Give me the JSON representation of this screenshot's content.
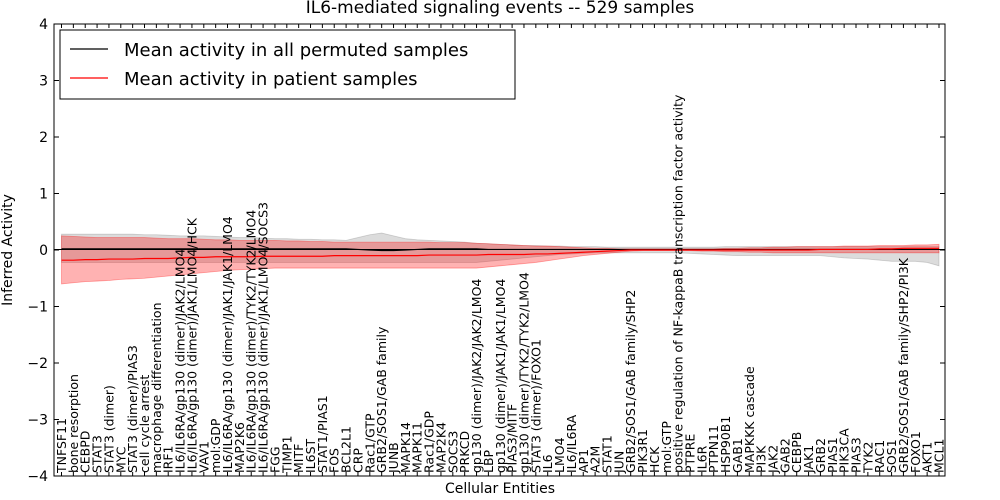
{
  "chart_data": {
    "type": "line",
    "title": "IL6-mediated signaling events -- 529 samples",
    "xlabel": "Cellular Entities",
    "ylabel": "Inferred Activity",
    "ylim": [
      -4,
      4
    ],
    "yticks": [
      -4,
      -3,
      -2,
      -1,
      0,
      1,
      2,
      3,
      4
    ],
    "grid": false,
    "legend_position": "top-left",
    "colors": {
      "permuted": "#000000",
      "patient": "#ff0000",
      "patient_band": "#ff0000",
      "permuted_band": "#808080"
    },
    "categories": [
      "TNFSF11",
      "bone resorption",
      "CEBPD",
      "STAT3",
      "STAT3 (dimer)",
      "MYC",
      "STAT3 (dimer)/PIAS3",
      "cell cycle arrest",
      "macrophage differentiation",
      "IRF1",
      "IL6/IL6RA/gp130 (dimer)/JAK2/LMO4",
      "IL6/IL6RA/gp130 (dimer)/JAK1/LMO4/HCK",
      "VAV1",
      "mol:GDP",
      "IL6/IL6RA/gp130 (dimer)/JAK1/JAK1/LMO4",
      "MAP2K6",
      "IL6/IL6RA/gp130 (dimer)/TYK2/TYK2/LMO4",
      "IL6/IL6RA/gp130 (dimer)/JAK1/LMO4/SOCS3",
      "FGG",
      "TIMP1",
      "MITF",
      "IL6ST",
      "STAT1/PIAS1",
      "FOS",
      "BCL2L1",
      "CRP",
      "Rac1/GTP",
      "GRB2/SOS1/GAB family",
      "JUNB",
      "MAPK14",
      "MAPK11",
      "Rac1/GDP",
      "MAP2K4",
      "SOCS3",
      "PRKCD",
      "gp130 (dimer)/JAK2/JAK2/LMO4",
      "LBP",
      "gp130 (dimer)/JAK1/JAK1/LMO4",
      "PIAS3/MITF",
      "gp130 (dimer)/TYK2/TYK2/LMO4",
      "STAT3 (dimer)/FOXO1",
      "IL6",
      "LMO4",
      "IL6/IL6RA",
      "AP1",
      "A2M",
      "STAT1",
      "JUN",
      "GRB2/SOS1/GAB family/SHP2",
      "PIK3R1",
      "HCK",
      "mol:GTP",
      "positive regulation of NF-kappaB transcription factor activity",
      "PTPRE",
      "IL6R",
      "PTPN11",
      "HSP90B1",
      "GAB1",
      "MAPKKK cascade",
      "PI3K",
      "JAK2",
      "GAB2",
      "CEBPB",
      "JAK1",
      "GRB2",
      "PIAS1",
      "PIK3CA",
      "PIAS3",
      "TYK2",
      "RAC1",
      "SOS1",
      "GRB2/SOS1/GAB family/SHP2/PI3K",
      "FOXO1",
      "AKT1",
      "MCL1"
    ],
    "series": [
      {
        "name": "Mean activity in all permuted samples",
        "values": [
          0.02,
          0.02,
          0.02,
          0.02,
          0.02,
          0.02,
          0.02,
          0.02,
          0.02,
          0.02,
          0.02,
          0.02,
          0.02,
          0.02,
          0.02,
          0.02,
          0.02,
          0.02,
          0.02,
          0.02,
          0.02,
          0.02,
          0.02,
          0.02,
          0.02,
          0.01,
          0.0,
          -0.01,
          -0.01,
          0.0,
          0.01,
          0.02,
          0.02,
          0.02,
          0.02,
          0.02,
          0.01,
          0.01,
          0.01,
          0.01,
          0.01,
          0.01,
          0.01,
          0.01,
          0.01,
          0.01,
          0.01,
          0.01,
          0.01,
          0.01,
          0.01,
          0.01,
          0.01,
          0.01,
          0.01,
          0.01,
          0.01,
          0.01,
          0.01,
          0.01,
          0.01,
          0.01,
          0.01,
          0.01,
          0.01,
          0.01,
          0.01,
          0.01,
          0.01,
          0.01,
          0.01,
          0.01,
          0.01,
          0.01,
          0.01
        ],
        "lower": [
          -0.22,
          -0.22,
          -0.22,
          -0.22,
          -0.22,
          -0.22,
          -0.22,
          -0.22,
          -0.22,
          -0.22,
          -0.22,
          -0.22,
          -0.22,
          -0.22,
          -0.22,
          -0.22,
          -0.22,
          -0.22,
          -0.22,
          -0.22,
          -0.22,
          -0.22,
          -0.22,
          -0.22,
          -0.22,
          -0.22,
          -0.22,
          -0.22,
          -0.22,
          -0.22,
          -0.22,
          -0.22,
          -0.22,
          -0.22,
          -0.22,
          -0.22,
          -0.2,
          -0.18,
          -0.16,
          -0.14,
          -0.12,
          -0.1,
          -0.08,
          -0.07,
          -0.06,
          -0.05,
          -0.05,
          -0.05,
          -0.05,
          -0.05,
          -0.05,
          -0.05,
          -0.05,
          -0.06,
          -0.07,
          -0.08,
          -0.09,
          -0.1,
          -0.1,
          -0.1,
          -0.1,
          -0.1,
          -0.1,
          -0.1,
          -0.1,
          -0.12,
          -0.14,
          -0.15,
          -0.16,
          -0.18,
          -0.2,
          -0.2,
          -0.2,
          -0.22,
          -0.28
        ],
        "upper": [
          0.28,
          0.28,
          0.28,
          0.28,
          0.28,
          0.28,
          0.28,
          0.27,
          0.27,
          0.26,
          0.25,
          0.25,
          0.25,
          0.24,
          0.23,
          0.22,
          0.22,
          0.21,
          0.2,
          0.2,
          0.19,
          0.19,
          0.18,
          0.18,
          0.17,
          0.22,
          0.27,
          0.3,
          0.25,
          0.2,
          0.18,
          0.17,
          0.16,
          0.15,
          0.14,
          0.12,
          0.11,
          0.1,
          0.09,
          0.08,
          0.08,
          0.07,
          0.07,
          0.06,
          0.06,
          0.06,
          0.05,
          0.05,
          0.05,
          0.05,
          0.05,
          0.05,
          0.05,
          0.05,
          0.05,
          0.05,
          0.06,
          0.06,
          0.06,
          0.06,
          0.06,
          0.06,
          0.06,
          0.06,
          0.06,
          0.06,
          0.06,
          0.06,
          0.06,
          0.06,
          0.06,
          0.06,
          0.06,
          0.06,
          0.06
        ]
      },
      {
        "name": "Mean activity in patient samples",
        "values": [
          -0.18,
          -0.18,
          -0.17,
          -0.17,
          -0.16,
          -0.16,
          -0.16,
          -0.15,
          -0.15,
          -0.15,
          -0.14,
          -0.13,
          -0.13,
          -0.12,
          -0.12,
          -0.12,
          -0.12,
          -0.11,
          -0.11,
          -0.11,
          -0.11,
          -0.11,
          -0.11,
          -0.1,
          -0.1,
          -0.1,
          -0.1,
          -0.1,
          -0.1,
          -0.1,
          -0.1,
          -0.09,
          -0.09,
          -0.09,
          -0.09,
          -0.09,
          -0.08,
          -0.08,
          -0.08,
          -0.08,
          -0.07,
          -0.07,
          -0.06,
          -0.05,
          -0.04,
          -0.03,
          -0.02,
          -0.01,
          0.0,
          0.0,
          0.0,
          0.0,
          0.0,
          0.0,
          0.0,
          0.0,
          0.0,
          0.0,
          0.0,
          0.0,
          0.0,
          0.0,
          0.0,
          0.0,
          0.01,
          0.01,
          0.01,
          0.01,
          0.01,
          0.02,
          0.02,
          0.03,
          0.03,
          0.03,
          0.03
        ],
        "lower": [
          -0.6,
          -0.58,
          -0.56,
          -0.55,
          -0.54,
          -0.52,
          -0.51,
          -0.5,
          -0.48,
          -0.46,
          -0.44,
          -0.42,
          -0.4,
          -0.38,
          -0.36,
          -0.35,
          -0.34,
          -0.33,
          -0.32,
          -0.32,
          -0.32,
          -0.32,
          -0.32,
          -0.32,
          -0.32,
          -0.32,
          -0.32,
          -0.32,
          -0.32,
          -0.32,
          -0.32,
          -0.32,
          -0.32,
          -0.32,
          -0.32,
          -0.32,
          -0.3,
          -0.28,
          -0.26,
          -0.24,
          -0.22,
          -0.19,
          -0.16,
          -0.13,
          -0.1,
          -0.08,
          -0.06,
          -0.04,
          -0.02,
          -0.01,
          -0.01,
          -0.01,
          -0.01,
          -0.01,
          -0.02,
          -0.02,
          -0.03,
          -0.03,
          -0.04,
          -0.04,
          -0.05,
          -0.05,
          -0.05,
          -0.05,
          -0.05,
          -0.05,
          -0.05,
          -0.05,
          -0.05,
          -0.05,
          -0.05,
          -0.05,
          -0.05,
          -0.05,
          -0.05
        ],
        "upper": [
          0.25,
          0.24,
          0.23,
          0.22,
          0.22,
          0.22,
          0.22,
          0.22,
          0.21,
          0.2,
          0.2,
          0.2,
          0.19,
          0.18,
          0.18,
          0.17,
          0.17,
          0.17,
          0.17,
          0.16,
          0.16,
          0.15,
          0.15,
          0.14,
          0.14,
          0.14,
          0.14,
          0.14,
          0.14,
          0.14,
          0.14,
          0.14,
          0.13,
          0.13,
          0.13,
          0.12,
          0.11,
          0.1,
          0.09,
          0.08,
          0.07,
          0.07,
          0.06,
          0.05,
          0.04,
          0.03,
          0.03,
          0.02,
          0.02,
          0.02,
          0.02,
          0.02,
          0.02,
          0.02,
          0.02,
          0.02,
          0.03,
          0.03,
          0.04,
          0.04,
          0.05,
          0.05,
          0.06,
          0.06,
          0.06,
          0.06,
          0.07,
          0.07,
          0.07,
          0.08,
          0.08,
          0.08,
          0.09,
          0.09,
          0.1
        ]
      }
    ]
  }
}
